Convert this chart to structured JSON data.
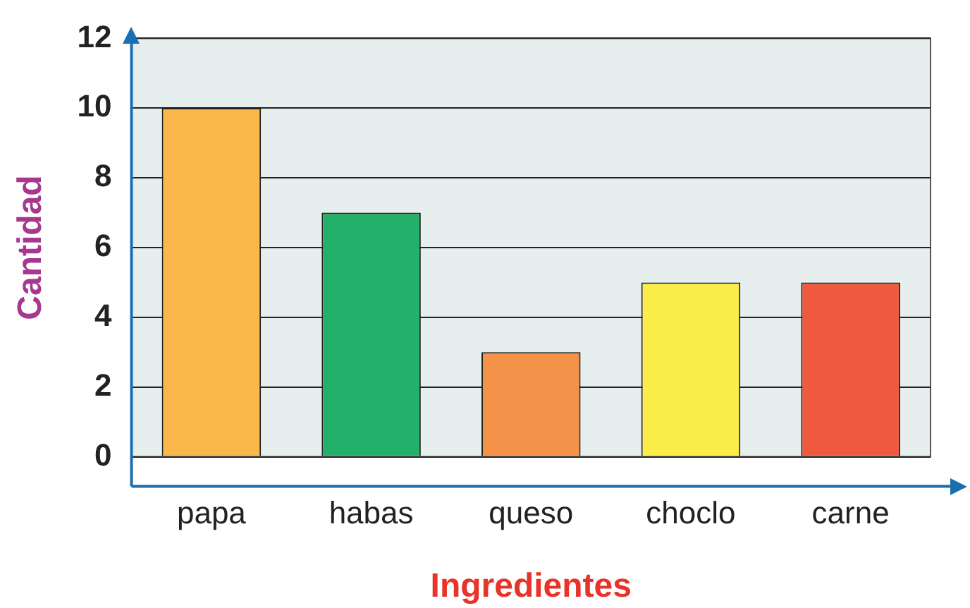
{
  "chart_data": {
    "type": "bar",
    "xlabel": "Ingredientes",
    "ylabel": "Cantidad",
    "categories": [
      "papa",
      "habas",
      "queso",
      "choclo",
      "carne"
    ],
    "values": [
      10,
      7,
      3,
      5,
      5
    ],
    "colors": [
      "#fbb84a",
      "#22b06a",
      "#f5924a",
      "#fcee4a",
      "#ef5a3f"
    ],
    "ylim": [
      0,
      12
    ],
    "yticks": [
      0,
      2,
      4,
      6,
      8,
      10,
      12
    ],
    "grid": "y"
  }
}
